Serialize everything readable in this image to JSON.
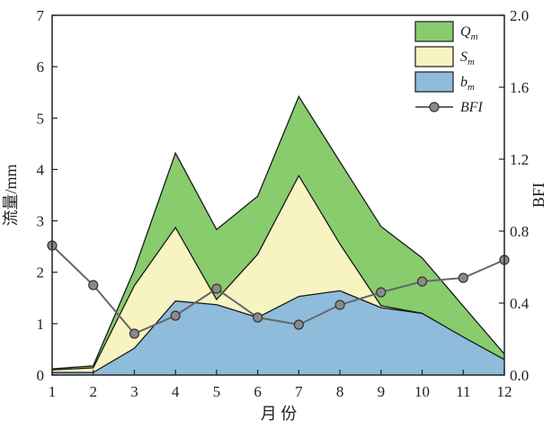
{
  "chart_data": {
    "type": "area",
    "x": [
      1,
      2,
      3,
      4,
      5,
      6,
      7,
      8,
      9,
      10,
      11,
      12
    ],
    "xlabel": "月 份",
    "ylabel": "流量/mm",
    "ylabel_right": "BFI",
    "xlim": [
      1,
      12
    ],
    "ylim": [
      0,
      7
    ],
    "ylim_right": [
      0,
      2.0
    ],
    "x_ticks": [
      "1",
      "2",
      "3",
      "4",
      "5",
      "6",
      "7",
      "8",
      "9",
      "10",
      "11",
      "12"
    ],
    "y_ticks": [
      "0",
      "1",
      "2",
      "3",
      "4",
      "5",
      "6",
      "7"
    ],
    "y_ticks_right": [
      "0.0",
      "0.4",
      "0.8",
      "1.2",
      "1.6",
      "2.0"
    ],
    "grid": false,
    "legend_position": "top-right",
    "series": [
      {
        "name": "Q",
        "name_sub": "m",
        "axis": "left",
        "style": "area",
        "color": "#88cc6e",
        "values": [
          0.12,
          0.18,
          2.05,
          4.32,
          2.83,
          3.48,
          5.42,
          4.15,
          2.89,
          2.28,
          1.34,
          0.41
        ]
      },
      {
        "name": "S",
        "name_sub": "m",
        "axis": "left",
        "style": "area",
        "color": "#f7f4c2",
        "values": [
          0.1,
          0.14,
          1.74,
          2.87,
          1.47,
          2.35,
          3.88,
          2.55,
          1.35,
          1.2,
          null,
          null
        ]
      },
      {
        "name": "b",
        "name_sub": "m",
        "axis": "left",
        "style": "area",
        "color": "#8fbcdb",
        "values": [
          0.05,
          0.05,
          0.52,
          1.44,
          1.37,
          1.12,
          1.53,
          1.64,
          1.31,
          1.2,
          0.74,
          0.3
        ]
      },
      {
        "name": "BFI",
        "axis": "right",
        "style": "line-marker",
        "color": "#666666",
        "values": [
          0.72,
          0.5,
          0.23,
          0.33,
          0.48,
          0.32,
          0.28,
          0.39,
          0.46,
          0.52,
          0.54,
          0.64
        ]
      }
    ]
  }
}
